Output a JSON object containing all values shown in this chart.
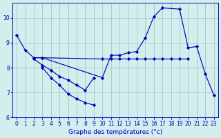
{
  "title": "Graphe des températures (°c)",
  "background_color": "#d4eeed",
  "grid_color": "#a8cccc",
  "line_color": "#0000bb",
  "xlim": [
    -0.5,
    23.5
  ],
  "ylim": [
    6.0,
    10.6
  ],
  "yticks": [
    6,
    7,
    8,
    9,
    10
  ],
  "xticks": [
    0,
    1,
    2,
    3,
    4,
    5,
    6,
    7,
    8,
    9,
    10,
    11,
    12,
    13,
    14,
    15,
    16,
    17,
    18,
    19,
    20,
    21,
    22,
    23
  ],
  "series": [
    {
      "x": [
        0,
        1,
        2,
        3,
        10,
        11,
        12,
        13,
        14,
        15,
        16,
        17,
        19,
        20,
        21,
        22,
        23
      ],
      "y": [
        9.3,
        8.7,
        8.4,
        8.4,
        7.6,
        8.5,
        8.5,
        8.6,
        8.65,
        9.2,
        10.05,
        10.4,
        10.35,
        8.8,
        8.85,
        7.75,
        6.9
      ]
    },
    {
      "x": [
        2,
        3,
        10,
        11,
        12,
        13,
        14,
        15,
        16,
        17,
        18,
        19,
        20
      ],
      "y": [
        8.4,
        8.4,
        8.35,
        8.35,
        8.35,
        8.35,
        8.35,
        8.35,
        8.35,
        8.35,
        8.35,
        8.35,
        8.35
      ]
    },
    {
      "x": [
        2,
        3,
        4,
        5,
        6,
        7,
        8,
        9
      ],
      "y": [
        8.35,
        8.1,
        7.9,
        7.65,
        7.5,
        7.3,
        7.1,
        7.6
      ]
    },
    {
      "x": [
        3,
        4,
        5,
        6,
        7,
        8,
        9
      ],
      "y": [
        8.0,
        7.6,
        7.3,
        6.95,
        6.75,
        6.6,
        6.5
      ]
    }
  ]
}
